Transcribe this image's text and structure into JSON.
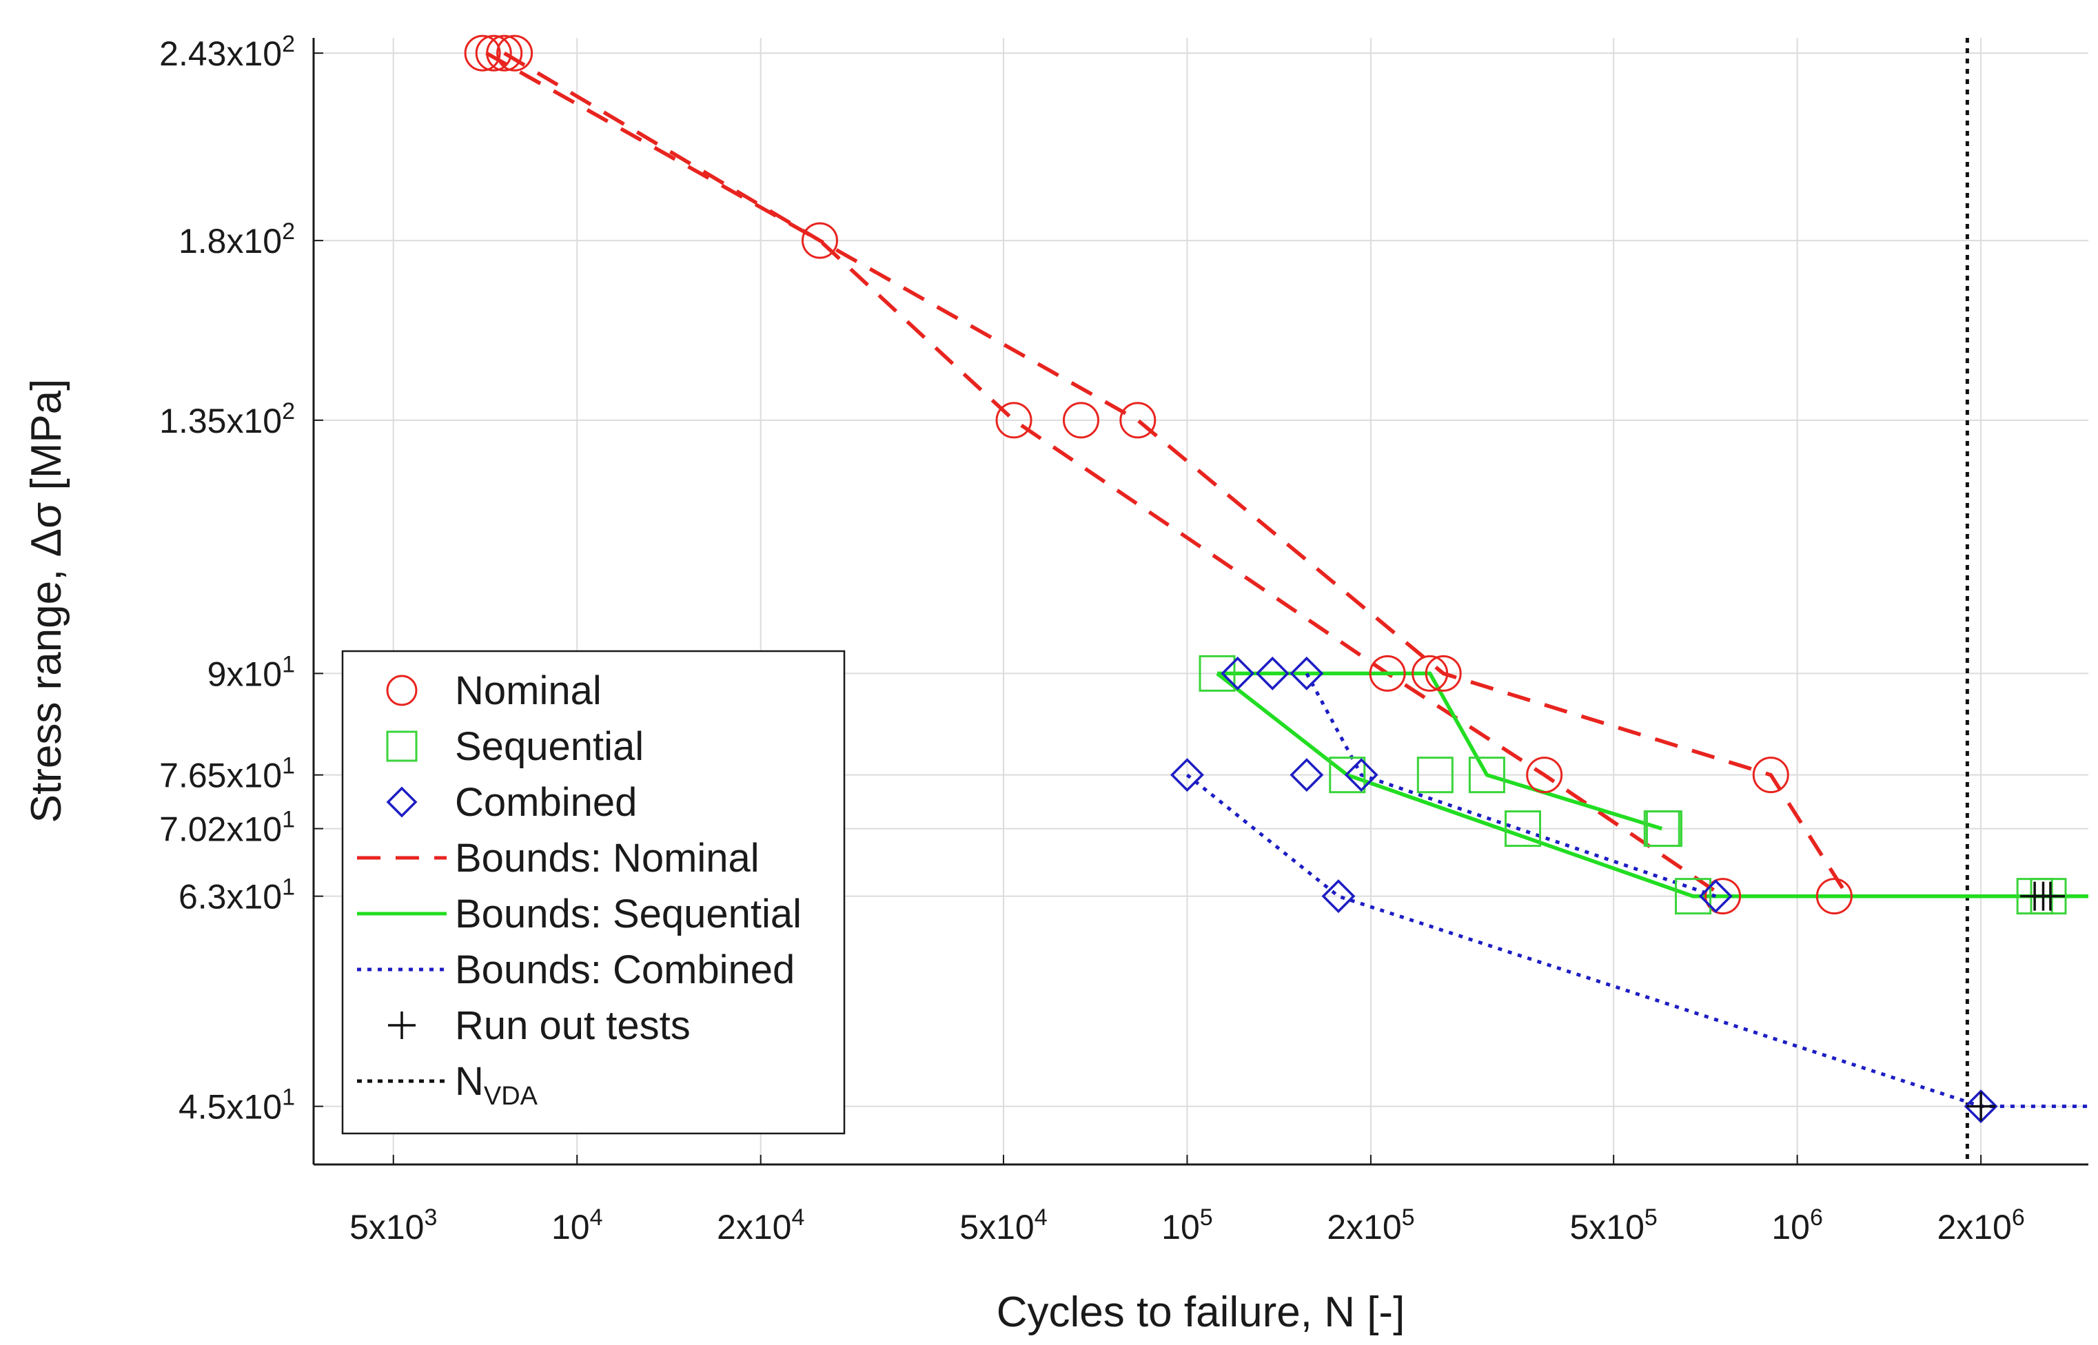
{
  "chart_data": {
    "type": "scatter",
    "xscale": "log",
    "yscale": "log",
    "xlim": [
      3700,
      3000000
    ],
    "ylim": [
      41,
      249
    ],
    "xlabel": "Cycles to failure, N [-]",
    "ylabel": "Stress range, Δσ [MPa]",
    "grid": true,
    "legend_position": "lower-left",
    "x_ticks": [
      {
        "value": 5000,
        "mant": "5x10",
        "exp": "3"
      },
      {
        "value": 10000,
        "mant": "10",
        "exp": "4"
      },
      {
        "value": 20000,
        "mant": "2x10",
        "exp": "4"
      },
      {
        "value": 50000,
        "mant": "5x10",
        "exp": "4"
      },
      {
        "value": 100000,
        "mant": "10",
        "exp": "5"
      },
      {
        "value": 200000,
        "mant": "2x10",
        "exp": "5"
      },
      {
        "value": 500000,
        "mant": "5x10",
        "exp": "5"
      },
      {
        "value": 1000000,
        "mant": "10",
        "exp": "6"
      },
      {
        "value": 2000000,
        "mant": "2x10",
        "exp": "6"
      }
    ],
    "y_ticks": [
      {
        "value": 45,
        "mant": "4.5x10",
        "exp": "1"
      },
      {
        "value": 63,
        "mant": "6.3x10",
        "exp": "1"
      },
      {
        "value": 70.2,
        "mant": "7.02x10",
        "exp": "1"
      },
      {
        "value": 76.5,
        "mant": "7.65x10",
        "exp": "1"
      },
      {
        "value": 90,
        "mant": "9x10",
        "exp": "1"
      },
      {
        "value": 135,
        "mant": "1.35x10",
        "exp": "2"
      },
      {
        "value": 180,
        "mant": "1.8x10",
        "exp": "2"
      },
      {
        "value": 243,
        "mant": "2.43x10",
        "exp": "2"
      }
    ],
    "series": [
      {
        "name": "Nominal",
        "kind": "marker",
        "marker": "circle",
        "color": "#e8241f",
        "points": [
          [
            7000,
            243
          ],
          [
            7300,
            243
          ],
          [
            7600,
            243
          ],
          [
            7900,
            243
          ],
          [
            25000,
            180
          ],
          [
            52000,
            135
          ],
          [
            67000,
            135
          ],
          [
            83000,
            135
          ],
          [
            213000,
            90
          ],
          [
            250000,
            90
          ],
          [
            263000,
            90
          ],
          [
            385000,
            76.5
          ],
          [
            905000,
            76.5
          ],
          [
            755000,
            63
          ],
          [
            1150000,
            63
          ]
        ]
      },
      {
        "name": "Sequential",
        "kind": "marker",
        "marker": "square",
        "color": "#3ad43a",
        "points": [
          [
            112000,
            90
          ],
          [
            183000,
            76.5
          ],
          [
            255000,
            76.5
          ],
          [
            310000,
            76.5
          ],
          [
            355000,
            70.2
          ],
          [
            600000,
            70.2
          ],
          [
            605000,
            70.2
          ],
          [
            675000,
            63
          ],
          [
            2450000,
            63
          ],
          [
            2580000,
            63
          ]
        ]
      },
      {
        "name": "Combined",
        "kind": "marker",
        "marker": "diamond",
        "color": "#1d1dc4",
        "points": [
          [
            100000,
            76.5
          ],
          [
            121000,
            90
          ],
          [
            138000,
            90
          ],
          [
            157000,
            90
          ],
          [
            157000,
            76.5
          ],
          [
            177000,
            63
          ],
          [
            193000,
            76.5
          ],
          [
            735000,
            63
          ],
          [
            2000000,
            45
          ]
        ]
      },
      {
        "name": "Bounds: Nominal",
        "kind": "line",
        "style": "dashed",
        "color": "#e8241f",
        "segments": [
          [
            [
              7600,
              243
            ],
            [
              25000,
              180
            ],
            [
              83000,
              135
            ],
            [
              263000,
              90
            ],
            [
              905000,
              76.5
            ],
            [
              1210000,
              63
            ]
          ],
          [
            [
              7100,
              243
            ],
            [
              25000,
              180
            ],
            [
              52000,
              135
            ],
            [
              213000,
              90
            ],
            [
              385000,
              76.5
            ],
            [
              755000,
              63
            ]
          ]
        ]
      },
      {
        "name": "Bounds: Sequential",
        "kind": "line",
        "style": "solid",
        "color": "#22dd22",
        "segments": [
          [
            [
              112000,
              90
            ],
            [
              250000,
              90
            ],
            [
              310000,
              76.5
            ],
            [
              600000,
              70.2
            ]
          ],
          [
            [
              112000,
              90
            ],
            [
              183000,
              76.5
            ],
            [
              675000,
              63
            ],
            [
              3000000,
              63
            ]
          ]
        ]
      },
      {
        "name": "Bounds: Combined",
        "kind": "line",
        "style": "dotted",
        "color": "#1d1dc4",
        "segments": [
          [
            [
              157000,
              90
            ],
            [
              193000,
              76.5
            ],
            [
              735000,
              63
            ]
          ],
          [
            [
              100000,
              76.5
            ],
            [
              177000,
              63
            ],
            [
              2000000,
              45
            ],
            [
              3000000,
              45
            ]
          ]
        ]
      },
      {
        "name": "Run out tests",
        "kind": "marker",
        "marker": "plus",
        "color": "#111111",
        "points": [
          [
            2450000,
            63
          ],
          [
            2530000,
            63
          ],
          [
            2600000,
            63
          ],
          [
            2000000,
            45
          ]
        ]
      },
      {
        "name": "N",
        "subscript": "VDA",
        "kind": "vline",
        "style": "dotted",
        "color": "#111111",
        "x": 1900000
      }
    ]
  }
}
